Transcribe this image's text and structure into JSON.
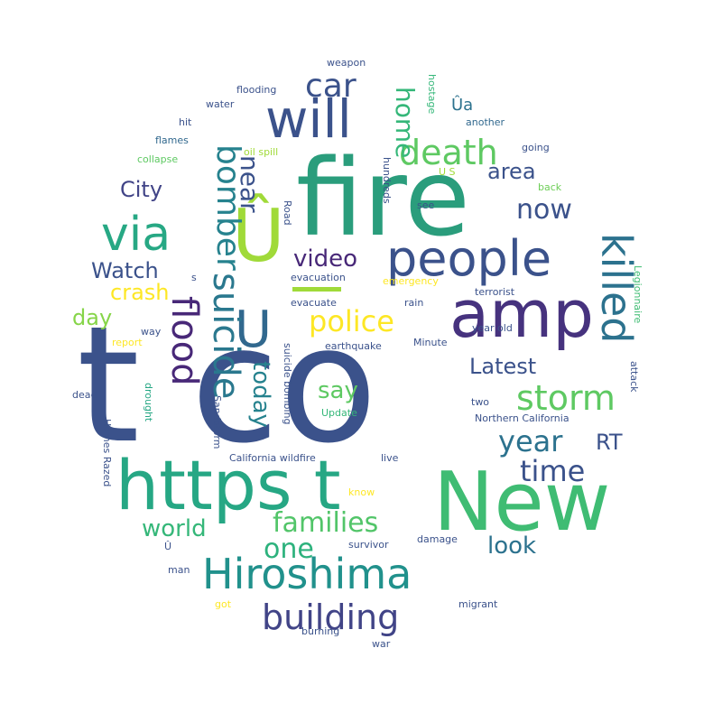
{
  "words": [
    {
      "text": "t co",
      "color": "#3b528b"
    },
    {
      "text": "fire",
      "color": "#2a9d7c"
    },
    {
      "text": "amp",
      "color": "#46327e"
    },
    {
      "text": "New",
      "color": "#3fbc73"
    },
    {
      "text": "https t",
      "color": "#26a784"
    },
    {
      "text": "people",
      "color": "#3b528b"
    },
    {
      "text": "Hiroshima",
      "color": "#21918c"
    },
    {
      "text": "will",
      "color": "#3b528b"
    },
    {
      "text": "via",
      "color": "#27a884"
    },
    {
      "text": "Û",
      "color": "#a0da39"
    },
    {
      "text": "U",
      "color": "#31688e"
    },
    {
      "text": "killed",
      "color": "#2c728e"
    },
    {
      "text": "death",
      "color": "#5ec962"
    },
    {
      "text": "storm",
      "color": "#5ec962"
    },
    {
      "text": "building",
      "color": "#414487"
    },
    {
      "text": "families",
      "color": "#52c569"
    },
    {
      "text": "police",
      "color": "#fde725"
    },
    {
      "text": "suicide",
      "color": "#2a788e"
    },
    {
      "text": "bomber",
      "color": "#26828e"
    },
    {
      "text": "flood",
      "color": "#482878"
    },
    {
      "text": "car",
      "color": "#3b528b"
    },
    {
      "text": "year",
      "color": "#2c728e"
    },
    {
      "text": "time",
      "color": "#3b528b"
    },
    {
      "text": "one",
      "color": "#2db27d"
    },
    {
      "text": "world",
      "color": "#35b779"
    },
    {
      "text": "look",
      "color": "#2c728e"
    },
    {
      "text": "now",
      "color": "#3b528b"
    },
    {
      "text": "video",
      "color": "#482878"
    },
    {
      "text": "Latest",
      "color": "#3b528b"
    },
    {
      "text": "say",
      "color": "#5ec962"
    },
    {
      "text": "home",
      "color": "#35b779"
    },
    {
      "text": "City",
      "color": "#414487"
    },
    {
      "text": "Watch",
      "color": "#3b528b"
    },
    {
      "text": "area",
      "color": "#3b528b"
    },
    {
      "text": "crash",
      "color": "#fde725"
    },
    {
      "text": "day",
      "color": "#86d549"
    },
    {
      "text": "near",
      "color": "#3b528b"
    },
    {
      "text": "today",
      "color": "#26828e"
    },
    {
      "text": "RT",
      "color": "#3b528b"
    },
    {
      "text": "Ûa",
      "color": "#2c728e"
    },
    {
      "text": "weapon",
      "color": "#3b528b"
    },
    {
      "text": "flooding",
      "color": "#3b528b"
    },
    {
      "text": "hostage",
      "color": "#35b779"
    },
    {
      "text": "water",
      "color": "#3b528b"
    },
    {
      "text": "another",
      "color": "#31688e"
    },
    {
      "text": "hit",
      "color": "#3b528b"
    },
    {
      "text": "flames",
      "color": "#31688e"
    },
    {
      "text": "going",
      "color": "#3b528b"
    },
    {
      "text": "collapse",
      "color": "#5ec962"
    },
    {
      "text": "oil spill",
      "color": "#a0da39"
    },
    {
      "text": "U S",
      "color": "#a0da39"
    },
    {
      "text": "back",
      "color": "#6ece58"
    },
    {
      "text": "hundreds",
      "color": "#3b528b"
    },
    {
      "text": "see",
      "color": "#3b528b"
    },
    {
      "text": "Road",
      "color": "#3b528b"
    },
    {
      "text": "emergency",
      "color": "#fde725"
    },
    {
      "text": "evacuation",
      "color": "#3b528b"
    },
    {
      "text": "terrorist",
      "color": "#3b528b"
    },
    {
      "text": "rain",
      "color": "#3b528b"
    },
    {
      "text": "Legionnaire",
      "color": "#3fbc73"
    },
    {
      "text": "evacuate",
      "color": "#3b528b"
    },
    {
      "text": "earthquake",
      "color": "#3b528b"
    },
    {
      "text": "Minute",
      "color": "#3b528b"
    },
    {
      "text": "year old",
      "color": "#3b528b"
    },
    {
      "text": "report",
      "color": "#fde725"
    },
    {
      "text": "way",
      "color": "#3b528b"
    },
    {
      "text": "attack",
      "color": "#3b528b"
    },
    {
      "text": "dead",
      "color": "#3b528b"
    },
    {
      "text": "drought",
      "color": "#26a784"
    },
    {
      "text": "suicide bombing",
      "color": "#3b528b"
    },
    {
      "text": "Sandstorm",
      "color": "#3b528b"
    },
    {
      "text": "two",
      "color": "#3b528b"
    },
    {
      "text": "Update",
      "color": "#35b779"
    },
    {
      "text": "Northern California",
      "color": "#3b528b"
    },
    {
      "text": "Homes Razed",
      "color": "#3b528b"
    },
    {
      "text": "California wildfire",
      "color": "#3b528b"
    },
    {
      "text": "live",
      "color": "#3b528b"
    },
    {
      "text": "know",
      "color": "#fde725"
    },
    {
      "text": "survivor",
      "color": "#3b528b"
    },
    {
      "text": "damage",
      "color": "#3b528b"
    },
    {
      "text": "Û",
      "color": "#3b528b"
    },
    {
      "text": "man",
      "color": "#3b528b"
    },
    {
      "text": "got",
      "color": "#fde725"
    },
    {
      "text": "migrant",
      "color": "#3b528b"
    },
    {
      "text": "burning",
      "color": "#3b528b"
    },
    {
      "text": "war",
      "color": "#3b528b"
    },
    {
      "text": "s",
      "color": "#3b528b"
    }
  ]
}
